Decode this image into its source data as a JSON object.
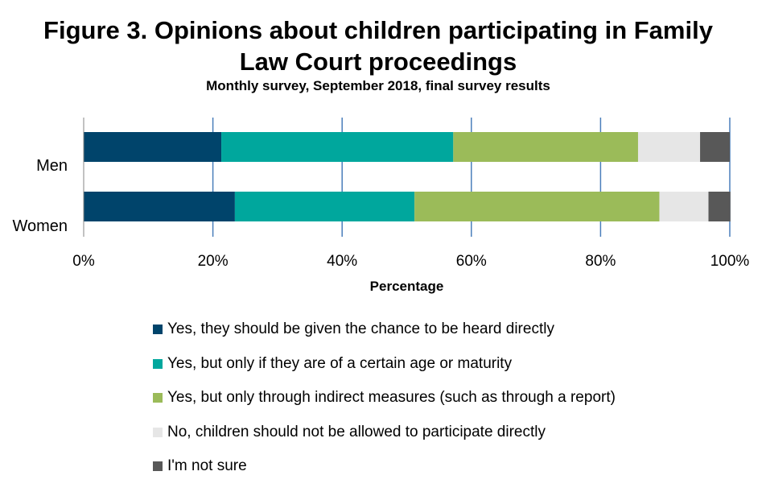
{
  "header": {
    "title_line1": "Figure 3. Opinions about children participating in Family",
    "title_line2": "Law Court proceedings",
    "subtitle": "Monthly survey, September 2018, final survey results"
  },
  "chart_data": {
    "type": "bar",
    "orientation": "horizontal",
    "stacked": true,
    "categories": [
      "Men",
      "Women"
    ],
    "series": [
      {
        "name": "Yes, they should be given the chance to be heard directly",
        "color": "#00446b",
        "values": [
          21.3,
          23.4
        ]
      },
      {
        "name": "Yes, but only if they are of a certain age or maturity",
        "color": "#00a79d",
        "values": [
          35.9,
          27.8
        ]
      },
      {
        "name": "Yes, but only through indirect measures (such as through a report)",
        "color": "#9bbb59",
        "values": [
          28.6,
          37.9
        ]
      },
      {
        "name": "No, children should not be allowed to participate directly",
        "color": "#e6e6e6",
        "values": [
          9.6,
          7.6
        ]
      },
      {
        "name": "I'm not sure",
        "color": "#585858",
        "values": [
          4.6,
          3.4
        ]
      }
    ],
    "xlabel": "Percentage",
    "ylabel": "",
    "xlim": [
      0,
      100
    ],
    "x_ticks": [
      "0%",
      "20%",
      "40%",
      "60%",
      "80%",
      "100%"
    ],
    "grid": "vertical",
    "legend_position": "bottom"
  }
}
